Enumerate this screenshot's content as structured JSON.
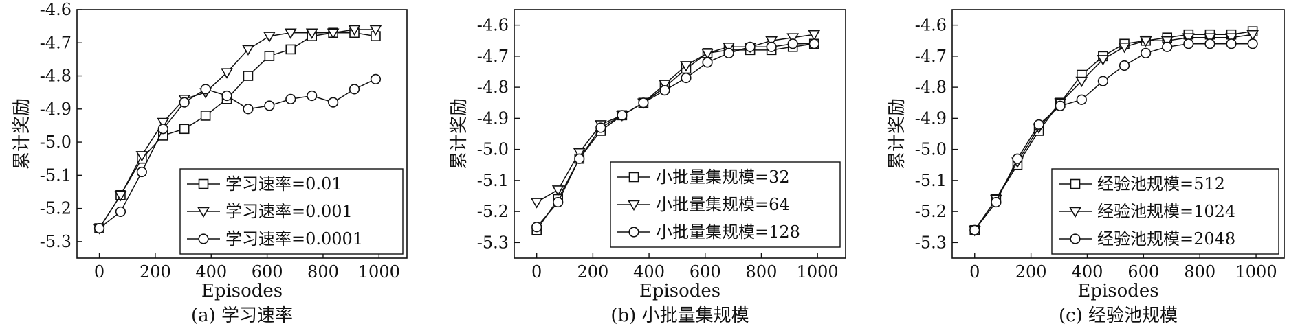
{
  "chart_data": [
    {
      "type": "line",
      "caption": "(a) 学习速率",
      "xlabel": "Episodes",
      "ylabel": "累计奖励",
      "xlim": [
        -80,
        1100
      ],
      "ylim": [
        -5.35,
        -4.6
      ],
      "xticks": [
        0,
        200,
        400,
        600,
        800,
        1000
      ],
      "yticks": [
        -5.3,
        -5.2,
        -5.1,
        -5.0,
        -4.9,
        -4.8,
        -4.7,
        -4.6
      ],
      "grid": false,
      "legend": "bottom-right",
      "series": [
        {
          "name": "学习速率=0.01",
          "marker": "square",
          "x": [
            0,
            76,
            152,
            228,
            304,
            380,
            456,
            532,
            608,
            684,
            760,
            836,
            912,
            988
          ],
          "y": [
            -5.26,
            -5.16,
            -5.05,
            -4.98,
            -4.96,
            -4.92,
            -4.87,
            -4.8,
            -4.74,
            -4.72,
            -4.68,
            -4.67,
            -4.67,
            -4.68
          ]
        },
        {
          "name": "学习速率=0.001",
          "marker": "triangle-down",
          "x": [
            0,
            76,
            152,
            228,
            304,
            380,
            456,
            532,
            608,
            684,
            760,
            836,
            912,
            988
          ],
          "y": [
            -5.26,
            -5.16,
            -5.04,
            -4.94,
            -4.87,
            -4.85,
            -4.79,
            -4.72,
            -4.68,
            -4.67,
            -4.67,
            -4.67,
            -4.66,
            -4.66
          ]
        },
        {
          "name": "学习速率=0.0001",
          "marker": "circle",
          "x": [
            0,
            76,
            152,
            228,
            304,
            380,
            456,
            532,
            608,
            684,
            760,
            836,
            912,
            988
          ],
          "y": [
            -5.26,
            -5.21,
            -5.09,
            -4.96,
            -4.88,
            -4.84,
            -4.86,
            -4.9,
            -4.89,
            -4.87,
            -4.86,
            -4.88,
            -4.84,
            -4.81
          ]
        }
      ]
    },
    {
      "type": "line",
      "caption": "(b) 小批量集规模",
      "xlabel": "Episodes",
      "ylabel": "累计奖励",
      "xlim": [
        -80,
        1100
      ],
      "ylim": [
        -5.35,
        -4.55
      ],
      "xticks": [
        0,
        200,
        400,
        600,
        800,
        1000
      ],
      "yticks": [
        -5.3,
        -5.2,
        -5.1,
        -5.0,
        -4.9,
        -4.8,
        -4.7,
        -4.6
      ],
      "grid": false,
      "legend": "bottom-right",
      "series": [
        {
          "name": "小批量集规模=32",
          "marker": "square",
          "x": [
            0,
            76,
            152,
            228,
            304,
            380,
            456,
            532,
            608,
            684,
            760,
            836,
            912,
            988
          ],
          "y": [
            -5.26,
            -5.16,
            -5.03,
            -4.94,
            -4.89,
            -4.85,
            -4.8,
            -4.74,
            -4.69,
            -4.68,
            -4.68,
            -4.68,
            -4.67,
            -4.66
          ]
        },
        {
          "name": "小批量集规模=64",
          "marker": "triangle-down",
          "x": [
            0,
            76,
            152,
            228,
            304,
            380,
            456,
            532,
            608,
            684,
            760,
            836,
            912,
            988
          ],
          "y": [
            -5.17,
            -5.13,
            -5.01,
            -4.92,
            -4.89,
            -4.85,
            -4.79,
            -4.73,
            -4.69,
            -4.67,
            -4.67,
            -4.65,
            -4.64,
            -4.63
          ]
        },
        {
          "name": "小批量集规模=128",
          "marker": "circle",
          "x": [
            0,
            76,
            152,
            228,
            304,
            380,
            456,
            532,
            608,
            684,
            760,
            836,
            912,
            988
          ],
          "y": [
            -5.25,
            -5.17,
            -5.03,
            -4.93,
            -4.89,
            -4.85,
            -4.81,
            -4.77,
            -4.72,
            -4.69,
            -4.67,
            -4.67,
            -4.66,
            -4.66
          ]
        }
      ]
    },
    {
      "type": "line",
      "caption": "(c) 经验池规模",
      "xlabel": "Episodes",
      "ylabel": "累计奖励",
      "xlim": [
        -80,
        1100
      ],
      "ylim": [
        -5.35,
        -4.55
      ],
      "xticks": [
        0,
        200,
        400,
        600,
        800,
        1000
      ],
      "yticks": [
        -5.3,
        -5.2,
        -5.1,
        -5.0,
        -4.9,
        -4.8,
        -4.7,
        -4.6
      ],
      "grid": false,
      "legend": "bottom-right",
      "series": [
        {
          "name": "经验池规模=512",
          "marker": "square",
          "x": [
            0,
            76,
            152,
            228,
            304,
            380,
            456,
            532,
            608,
            684,
            760,
            836,
            912,
            988
          ],
          "y": [
            -5.26,
            -5.16,
            -5.05,
            -4.94,
            -4.85,
            -4.76,
            -4.7,
            -4.66,
            -4.65,
            -4.64,
            -4.63,
            -4.63,
            -4.63,
            -4.62
          ]
        },
        {
          "name": "经验池规模=1024",
          "marker": "triangle-down",
          "x": [
            0,
            76,
            152,
            228,
            304,
            380,
            456,
            532,
            608,
            684,
            760,
            836,
            912,
            988
          ],
          "y": [
            -5.26,
            -5.16,
            -5.04,
            -4.93,
            -4.85,
            -4.78,
            -4.71,
            -4.67,
            -4.65,
            -4.65,
            -4.64,
            -4.64,
            -4.64,
            -4.63
          ]
        },
        {
          "name": "经验池规模=2048",
          "marker": "circle",
          "x": [
            0,
            76,
            152,
            228,
            304,
            380,
            456,
            532,
            608,
            684,
            760,
            836,
            912,
            988
          ],
          "y": [
            -5.26,
            -5.17,
            -5.03,
            -4.92,
            -4.86,
            -4.84,
            -4.78,
            -4.73,
            -4.69,
            -4.67,
            -4.66,
            -4.66,
            -4.66,
            -4.66
          ]
        }
      ]
    }
  ]
}
